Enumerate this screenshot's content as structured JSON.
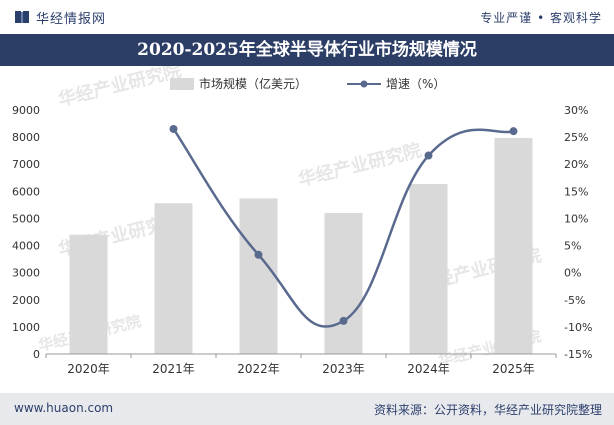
{
  "header": {
    "brand_name": "华经情报网",
    "slogan": "专业严谨 • 客观科学",
    "logo_icon": "book-icon"
  },
  "footer": {
    "site_url": "www.huaon.com",
    "source": "资料来源：公开资料，华经产业研究院整理"
  },
  "watermark": "华经产业研究院",
  "colors": {
    "title_bar": "#2c3e66",
    "bar": "#d9d9d9",
    "line": "#5a6a8e",
    "text": "#2b3f6b"
  },
  "chart_data": {
    "type": "bar",
    "title": "2020-2025年全球半导体行业市场规模情况",
    "categories": [
      "2020年",
      "2021年",
      "2022年",
      "2023年",
      "2024年",
      "2025年"
    ],
    "series": [
      {
        "name": "市场规模（亿美元）",
        "type": "bar",
        "axis": "left",
        "values": [
          4400,
          5560,
          5740,
          5200,
          6270,
          7970
        ]
      },
      {
        "name": "增速（%）",
        "type": "line",
        "axis": "right",
        "values": [
          null,
          26.5,
          3.3,
          -8.9,
          21.6,
          26.1
        ]
      }
    ],
    "y_left": {
      "range": [
        0,
        9000
      ],
      "ticks": [
        0,
        1000,
        2000,
        3000,
        4000,
        5000,
        6000,
        7000,
        8000,
        9000
      ]
    },
    "y_right": {
      "range": [
        -15,
        30
      ],
      "ticks": [
        "-15%",
        "-10%",
        "-5%",
        "0%",
        "5%",
        "10%",
        "15%",
        "20%",
        "25%",
        "30%"
      ]
    },
    "legend_position": "top",
    "grid": false
  }
}
